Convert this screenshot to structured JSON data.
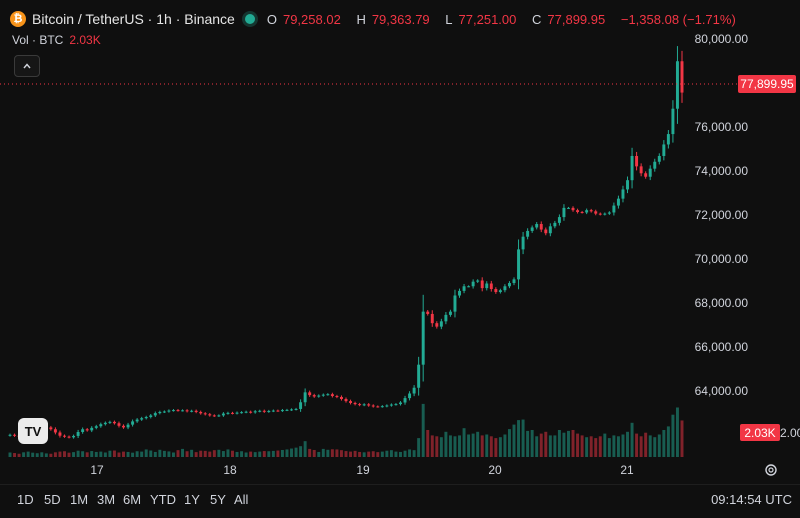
{
  "header": {
    "icon": "bitcoin-icon",
    "symbol": "Bitcoin / TetherUS · 1h · Binance",
    "ohlc": {
      "o_key": "O",
      "o_val": "79,258.02",
      "h_key": "H",
      "h_val": "79,363.79",
      "l_key": "L",
      "l_val": "77,251.00",
      "c_key": "C",
      "c_val": "77,899.95",
      "change": "−1,358.08 (−1.71%)"
    }
  },
  "volume_row": {
    "label": "Vol · BTC",
    "value": "2.03K"
  },
  "price_axis": [
    "80,000.00",
    "76,000.00",
    "74,000.00",
    "72,000.00",
    "70,000.00",
    "68,000.00",
    "66,000.00",
    "64,000.00"
  ],
  "last_price": "77,899.95",
  "volume_axis_label": "2.00",
  "volume_tag": "2.03K",
  "time_axis": [
    "17",
    "18",
    "19",
    "20",
    "21"
  ],
  "ranges": [
    "1D",
    "5D",
    "1M",
    "3M",
    "6M",
    "YTD",
    "1Y",
    "5Y",
    "All"
  ],
  "clock": "09:14:54 UTC",
  "logo_text": "TV",
  "colors": {
    "up": "#22ab94",
    "down": "#f23645",
    "background": "#0f0f0f"
  },
  "chart_data": {
    "type": "candlestick",
    "interval": "1h",
    "ylim": [
      62400,
      80700
    ],
    "close": [
      63060,
      63020,
      62990,
      63050,
      63100,
      63180,
      63250,
      63320,
      63380,
      63300,
      63160,
      63020,
      62980,
      62950,
      63010,
      63180,
      63300,
      63250,
      63360,
      63430,
      63520,
      63580,
      63620,
      63560,
      63450,
      63380,
      63500,
      63640,
      63720,
      63780,
      63830,
      63900,
      64000,
      64050,
      64070,
      64110,
      64130,
      64110,
      64120,
      64080,
      64100,
      64050,
      63990,
      63950,
      63900,
      63880,
      63900,
      63980,
      64010,
      63990,
      64020,
      64040,
      64060,
      64030,
      64080,
      64100,
      64060,
      64090,
      64110,
      64100,
      64130,
      64140,
      64160,
      64180,
      64470,
      64900,
      64780,
      64720,
      64760,
      64800,
      64820,
      64740,
      64700,
      64610,
      64520,
      64440,
      64390,
      64350,
      64380,
      64330,
      64290,
      64280,
      64300,
      64330,
      64370,
      64390,
      64460,
      64650,
      64850,
      65100,
      66100,
      68400,
      68300,
      67900,
      67750,
      67980,
      68260,
      68400,
      69100,
      69300,
      69500,
      69500,
      69700,
      69750,
      69420,
      69620,
      69380,
      69250,
      69330,
      69500,
      69640,
      69800,
      71100,
      71650,
      71900,
      72050,
      72200,
      71960,
      71800,
      72100,
      72250,
      72500,
      72900,
      72900,
      72800,
      72720,
      72700,
      72800,
      72750,
      72650,
      72620,
      72650,
      72700,
      73000,
      73300,
      73700,
      74100,
      75150,
      74700,
      74400,
      74250,
      74600,
      74900,
      75150,
      75650,
      76100,
      77200,
      79258,
      77900
    ],
    "volume": [
      250,
      220,
      180,
      260,
      300,
      240,
      210,
      260,
      200,
      180,
      260,
      300,
      320,
      240,
      270,
      350,
      320,
      260,
      330,
      280,
      300,
      250,
      350,
      360,
      250,
      300,
      280,
      240,
      320,
      300,
      420,
      360,
      280,
      400,
      340,
      310,
      250,
      380,
      450,
      320,
      400,
      270,
      350,
      340,
      300,
      380,
      400,
      330,
      420,
      350,
      280,
      320,
      250,
      300,
      270,
      300,
      330,
      320,
      340,
      360,
      390,
      420,
      470,
      520,
      600,
      880,
      450,
      390,
      280,
      450,
      400,
      430,
      420,
      380,
      330,
      300,
      340,
      280,
      260,
      300,
      320,
      270,
      300,
      350,
      380,
      300,
      280,
      350,
      420,
      380,
      1050,
      2950,
      1500,
      1200,
      1150,
      1100,
      1400,
      1200,
      1150,
      1200,
      1600,
      1250,
      1300,
      1400,
      1200,
      1250,
      1150,
      1050,
      1100,
      1250,
      1550,
      1800,
      2050,
      2080,
      1450,
      1500,
      1150,
      1300,
      1400,
      1200,
      1200,
      1500,
      1350,
      1450,
      1500,
      1300,
      1200,
      1100,
      1150,
      1050,
      1150,
      1300,
      1050,
      1200,
      1150,
      1250,
      1400,
      1900,
      1300,
      1150,
      1350,
      1200,
      1100,
      1250,
      1500,
      1700,
      2350,
      2750,
      2030
    ],
    "vol_max": 3000
  }
}
